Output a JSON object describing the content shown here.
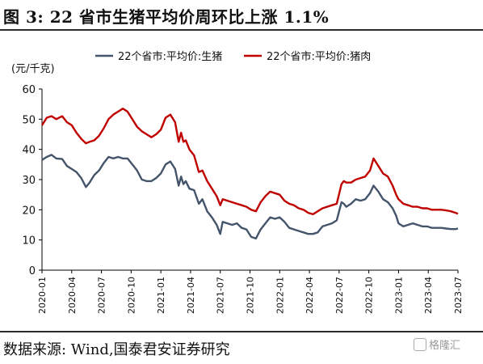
{
  "header": {
    "title": "图 3:  22 省市生猪平均价周环比上涨 1.1%"
  },
  "footer": {
    "source": "数据来源:  Wind,国泰君安证券研究",
    "watermark": "格隆汇"
  },
  "chart_data": {
    "type": "line",
    "unit_label": "(元/千克)",
    "ylim": [
      0,
      60
    ],
    "yticks": [
      0,
      10,
      20,
      30,
      40,
      50,
      60
    ],
    "x_start": "2020-01",
    "x_end": "2023-07",
    "xticks": [
      "2020-01",
      "2020-04",
      "2020-07",
      "2020-10",
      "2021-01",
      "2021-04",
      "2021-07",
      "2021-10",
      "2022-01",
      "2022-04",
      "2022-07",
      "2022-10",
      "2023-01",
      "2023-04",
      "2023-07"
    ],
    "legend": "top",
    "colors": {
      "live_pig": "#44546a",
      "pork": "#c00000"
    },
    "series": [
      {
        "key": "live_pig",
        "name": "22个省市:平均价:生猪",
        "points": [
          [
            2020.0,
            36.5
          ],
          [
            2020.04,
            37.5
          ],
          [
            2020.08,
            38.2
          ],
          [
            2020.12,
            37.0
          ],
          [
            2020.17,
            36.8
          ],
          [
            2020.21,
            34.5
          ],
          [
            2020.25,
            33.5
          ],
          [
            2020.29,
            32.5
          ],
          [
            2020.33,
            30.5
          ],
          [
            2020.37,
            27.5
          ],
          [
            2020.4,
            29.0
          ],
          [
            2020.44,
            31.5
          ],
          [
            2020.48,
            33.0
          ],
          [
            2020.52,
            35.5
          ],
          [
            2020.56,
            37.5
          ],
          [
            2020.6,
            37.0
          ],
          [
            2020.64,
            37.5
          ],
          [
            2020.68,
            37.0
          ],
          [
            2020.72,
            37.0
          ],
          [
            2020.76,
            35.0
          ],
          [
            2020.8,
            33.0
          ],
          [
            2020.84,
            30.0
          ],
          [
            2020.88,
            29.5
          ],
          [
            2020.92,
            29.5
          ],
          [
            2020.96,
            30.5
          ],
          [
            2021.0,
            32.0
          ],
          [
            2021.04,
            35.0
          ],
          [
            2021.08,
            36.0
          ],
          [
            2021.12,
            33.5
          ],
          [
            2021.15,
            28.0
          ],
          [
            2021.17,
            31.0
          ],
          [
            2021.19,
            28.5
          ],
          [
            2021.21,
            29.5
          ],
          [
            2021.24,
            27.0
          ],
          [
            2021.28,
            26.5
          ],
          [
            2021.32,
            22.0
          ],
          [
            2021.35,
            23.5
          ],
          [
            2021.39,
            19.5
          ],
          [
            2021.43,
            17.5
          ],
          [
            2021.47,
            15.0
          ],
          [
            2021.5,
            12.0
          ],
          [
            2021.52,
            16.0
          ],
          [
            2021.56,
            15.5
          ],
          [
            2021.6,
            15.0
          ],
          [
            2021.64,
            15.5
          ],
          [
            2021.68,
            14.0
          ],
          [
            2021.72,
            13.5
          ],
          [
            2021.76,
            11.0
          ],
          [
            2021.8,
            10.5
          ],
          [
            2021.84,
            13.5
          ],
          [
            2021.88,
            15.5
          ],
          [
            2021.92,
            17.5
          ],
          [
            2021.96,
            17.0
          ],
          [
            2022.0,
            17.5
          ],
          [
            2022.04,
            16.0
          ],
          [
            2022.08,
            14.0
          ],
          [
            2022.12,
            13.5
          ],
          [
            2022.16,
            13.0
          ],
          [
            2022.2,
            12.5
          ],
          [
            2022.24,
            12.0
          ],
          [
            2022.28,
            12.0
          ],
          [
            2022.32,
            12.5
          ],
          [
            2022.36,
            14.5
          ],
          [
            2022.4,
            15.0
          ],
          [
            2022.44,
            15.5
          ],
          [
            2022.48,
            16.5
          ],
          [
            2022.52,
            22.5
          ],
          [
            2022.54,
            22.0
          ],
          [
            2022.56,
            21.0
          ],
          [
            2022.6,
            22.0
          ],
          [
            2022.64,
            23.5
          ],
          [
            2022.68,
            23.0
          ],
          [
            2022.72,
            23.5
          ],
          [
            2022.76,
            25.5
          ],
          [
            2022.79,
            28.0
          ],
          [
            2022.83,
            26.0
          ],
          [
            2022.87,
            23.5
          ],
          [
            2022.91,
            22.5
          ],
          [
            2022.95,
            20.5
          ],
          [
            2022.98,
            18.0
          ],
          [
            2023.0,
            15.5
          ],
          [
            2023.04,
            14.5
          ],
          [
            2023.08,
            15.0
          ],
          [
            2023.12,
            15.5
          ],
          [
            2023.16,
            15.0
          ],
          [
            2023.2,
            14.5
          ],
          [
            2023.24,
            14.5
          ],
          [
            2023.28,
            14.0
          ],
          [
            2023.32,
            14.0
          ],
          [
            2023.36,
            14.0
          ],
          [
            2023.4,
            13.8
          ],
          [
            2023.44,
            13.6
          ],
          [
            2023.48,
            13.6
          ],
          [
            2023.5,
            13.8
          ]
        ]
      },
      {
        "key": "pork",
        "name": "22个省市:平均价:猪肉",
        "points": [
          [
            2020.0,
            48.0
          ],
          [
            2020.04,
            50.5
          ],
          [
            2020.08,
            51.0
          ],
          [
            2020.12,
            50.0
          ],
          [
            2020.17,
            51.0
          ],
          [
            2020.21,
            49.0
          ],
          [
            2020.25,
            48.0
          ],
          [
            2020.29,
            45.5
          ],
          [
            2020.33,
            43.5
          ],
          [
            2020.37,
            42.0
          ],
          [
            2020.4,
            42.5
          ],
          [
            2020.44,
            43.0
          ],
          [
            2020.48,
            44.5
          ],
          [
            2020.52,
            47.0
          ],
          [
            2020.56,
            50.0
          ],
          [
            2020.6,
            51.5
          ],
          [
            2020.64,
            52.5
          ],
          [
            2020.68,
            53.5
          ],
          [
            2020.72,
            52.5
          ],
          [
            2020.76,
            50.0
          ],
          [
            2020.8,
            47.5
          ],
          [
            2020.84,
            46.0
          ],
          [
            2020.88,
            45.0
          ],
          [
            2020.92,
            44.0
          ],
          [
            2020.96,
            45.0
          ],
          [
            2021.0,
            46.5
          ],
          [
            2021.04,
            50.5
          ],
          [
            2021.08,
            51.5
          ],
          [
            2021.12,
            49.0
          ],
          [
            2021.15,
            42.5
          ],
          [
            2021.17,
            45.5
          ],
          [
            2021.19,
            42.5
          ],
          [
            2021.21,
            43.0
          ],
          [
            2021.24,
            40.0
          ],
          [
            2021.28,
            38.0
          ],
          [
            2021.32,
            32.5
          ],
          [
            2021.35,
            33.0
          ],
          [
            2021.39,
            29.5
          ],
          [
            2021.43,
            27.0
          ],
          [
            2021.47,
            24.5
          ],
          [
            2021.5,
            21.5
          ],
          [
            2021.52,
            23.5
          ],
          [
            2021.56,
            23.0
          ],
          [
            2021.6,
            22.5
          ],
          [
            2021.64,
            22.0
          ],
          [
            2021.68,
            21.5
          ],
          [
            2021.72,
            21.0
          ],
          [
            2021.76,
            20.0
          ],
          [
            2021.8,
            19.5
          ],
          [
            2021.84,
            22.5
          ],
          [
            2021.88,
            24.5
          ],
          [
            2021.92,
            26.0
          ],
          [
            2021.96,
            25.5
          ],
          [
            2022.0,
            25.0
          ],
          [
            2022.04,
            23.0
          ],
          [
            2022.08,
            22.0
          ],
          [
            2022.12,
            21.5
          ],
          [
            2022.16,
            20.5
          ],
          [
            2022.2,
            20.0
          ],
          [
            2022.24,
            19.0
          ],
          [
            2022.28,
            18.5
          ],
          [
            2022.32,
            19.5
          ],
          [
            2022.36,
            20.5
          ],
          [
            2022.4,
            21.0
          ],
          [
            2022.44,
            21.5
          ],
          [
            2022.48,
            22.0
          ],
          [
            2022.52,
            28.5
          ],
          [
            2022.54,
            29.5
          ],
          [
            2022.56,
            29.0
          ],
          [
            2022.6,
            29.0
          ],
          [
            2022.64,
            30.0
          ],
          [
            2022.68,
            30.5
          ],
          [
            2022.72,
            31.0
          ],
          [
            2022.76,
            33.0
          ],
          [
            2022.79,
            37.0
          ],
          [
            2022.83,
            34.5
          ],
          [
            2022.87,
            32.0
          ],
          [
            2022.91,
            31.0
          ],
          [
            2022.95,
            28.0
          ],
          [
            2022.98,
            25.0
          ],
          [
            2023.0,
            23.5
          ],
          [
            2023.04,
            22.0
          ],
          [
            2023.08,
            21.5
          ],
          [
            2023.12,
            21.0
          ],
          [
            2023.16,
            21.0
          ],
          [
            2023.2,
            20.5
          ],
          [
            2023.24,
            20.5
          ],
          [
            2023.28,
            20.0
          ],
          [
            2023.32,
            20.0
          ],
          [
            2023.36,
            20.0
          ],
          [
            2023.4,
            19.8
          ],
          [
            2023.44,
            19.5
          ],
          [
            2023.48,
            19.0
          ],
          [
            2023.5,
            18.7
          ]
        ]
      }
    ]
  }
}
